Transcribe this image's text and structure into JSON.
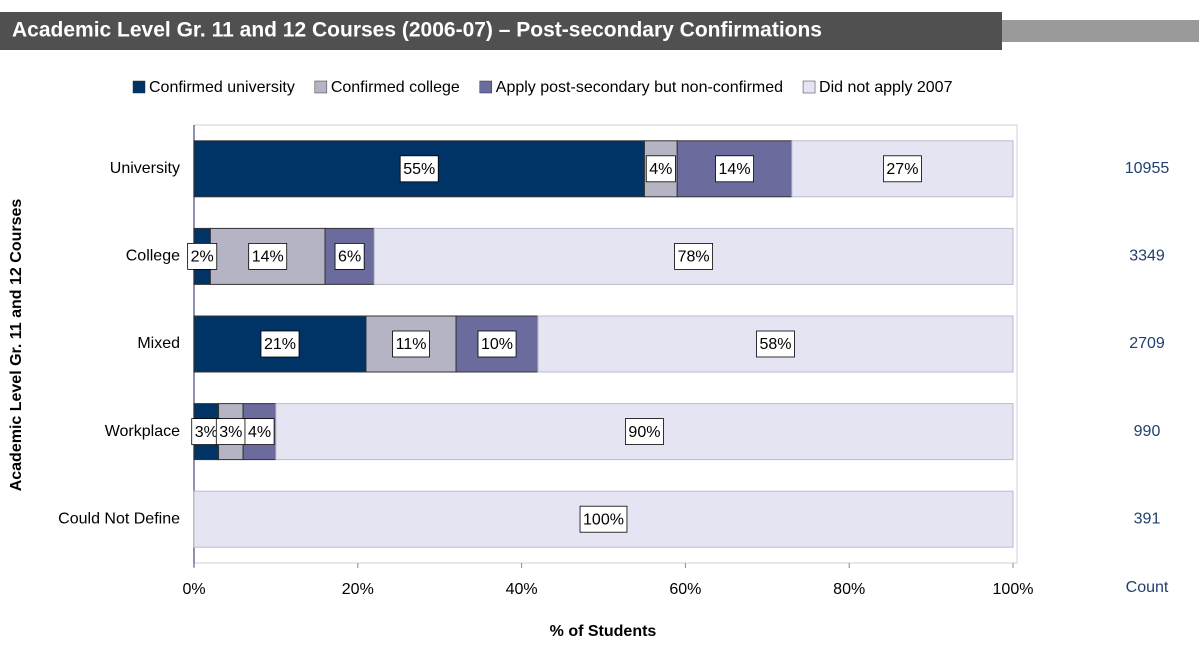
{
  "chart_data": {
    "type": "stacked-barh",
    "title": "Academic Level Gr. 11 and 12 Courses (2006-07) – Post-secondary Confirmations",
    "xlabel": "% of Students",
    "ylabel": "Academic Level Gr. 11 and 12 Courses",
    "categories": [
      "University",
      "College",
      "Mixed",
      "Workplace",
      "Could Not Define"
    ],
    "series": [
      {
        "name": "Confirmed university",
        "color": "#003366",
        "values": [
          55,
          2,
          21,
          3,
          null
        ],
        "value_labels": [
          "55%",
          "2%",
          "21%",
          "3%",
          null
        ]
      },
      {
        "name": "Confirmed college",
        "color": "#b4b4c4",
        "values": [
          4,
          14,
          11,
          3,
          null
        ],
        "value_labels": [
          "4%",
          "14%",
          "11%",
          "3%",
          null
        ]
      },
      {
        "name": "Apply post-secondary but non-confirmed",
        "color": "#6b6b9e",
        "values": [
          14,
          6,
          10,
          4,
          null
        ],
        "value_labels": [
          "14%",
          "6%",
          "10%",
          "4%",
          null
        ]
      },
      {
        "name": "Did not apply 2007",
        "color": "#e4e4f2",
        "values": [
          27,
          78,
          58,
          90,
          100
        ],
        "value_labels": [
          "27%",
          "78%",
          "58%",
          "90%",
          "100%"
        ]
      }
    ],
    "count_header": "Count",
    "counts": [
      10955,
      3349,
      2709,
      990,
      391
    ],
    "xlim": [
      0,
      100
    ],
    "xticks": [
      {
        "value": 0,
        "label": "0%"
      },
      {
        "value": 20,
        "label": "20%"
      },
      {
        "value": 40,
        "label": "40%"
      },
      {
        "value": 60,
        "label": "60%"
      },
      {
        "value": 80,
        "label": "80%"
      },
      {
        "value": 100,
        "label": "100%"
      }
    ],
    "legend": "top"
  }
}
